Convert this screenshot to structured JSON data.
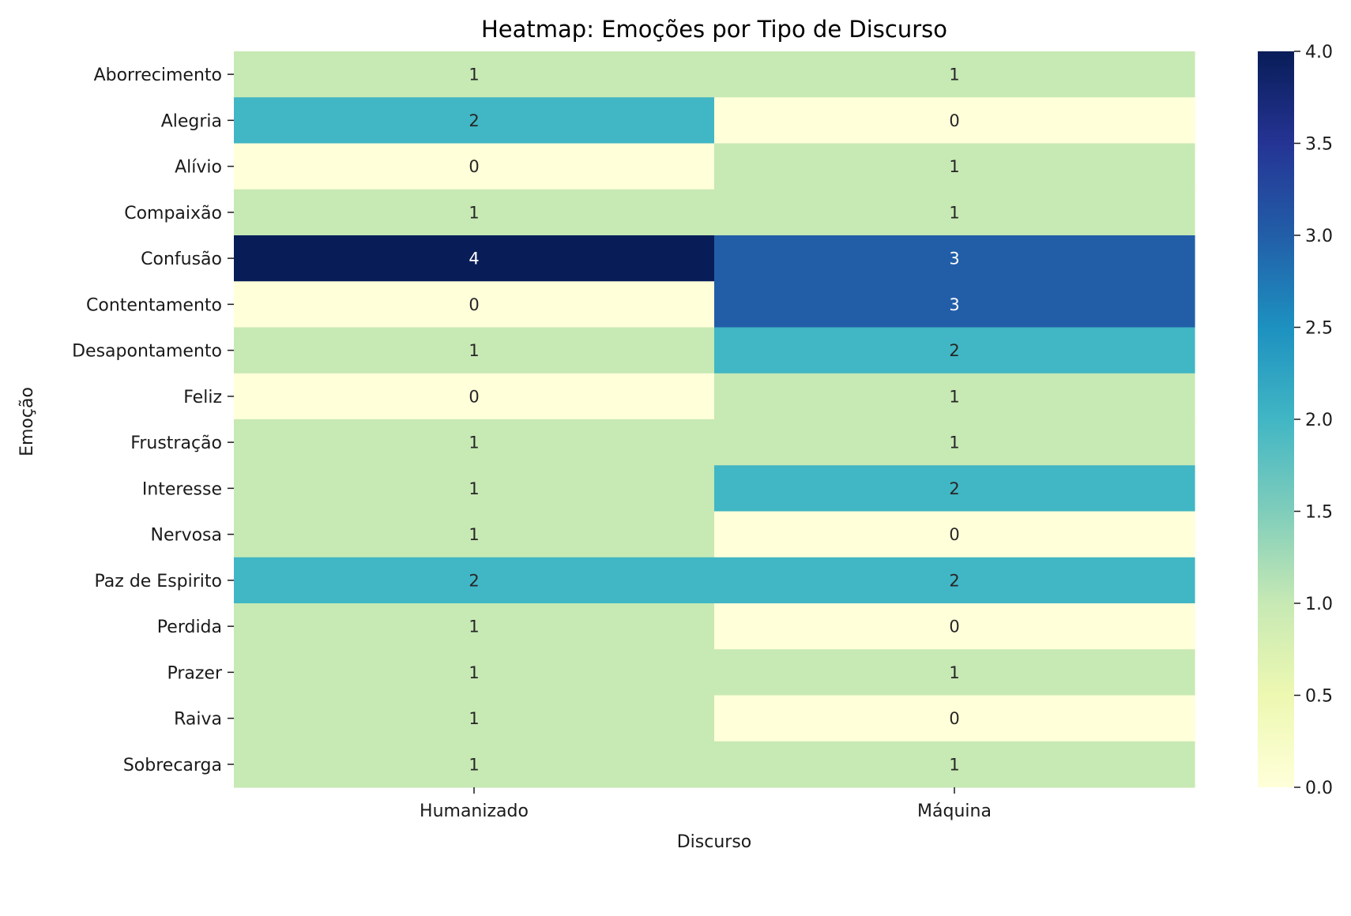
{
  "chart_data": {
    "type": "heatmap",
    "title": "Heatmap: Emoções por Tipo de Discurso",
    "xlabel": "Discurso",
    "ylabel": "Emoção",
    "x_categories": [
      "Humanizado",
      "Máquina"
    ],
    "y_categories": [
      "Aborrecimento",
      "Alegria",
      "Alívio",
      "Compaixão",
      "Confusão",
      "Contentamento",
      "Desapontamento",
      "Feliz",
      "Frustração",
      "Interesse",
      "Nervosa",
      "Paz de Espirito",
      "Perdida",
      "Prazer",
      "Raiva",
      "Sobrecarga"
    ],
    "values": [
      [
        1,
        1
      ],
      [
        2,
        0
      ],
      [
        0,
        1
      ],
      [
        1,
        1
      ],
      [
        4,
        3
      ],
      [
        0,
        3
      ],
      [
        1,
        2
      ],
      [
        0,
        1
      ],
      [
        1,
        1
      ],
      [
        1,
        2
      ],
      [
        1,
        0
      ],
      [
        2,
        2
      ],
      [
        1,
        0
      ],
      [
        1,
        1
      ],
      [
        1,
        0
      ],
      [
        1,
        1
      ]
    ],
    "colormap": "YlGnBu",
    "colorbar": {
      "range": [
        0,
        4
      ],
      "ticks": [
        0.0,
        0.5,
        1.0,
        1.5,
        2.0,
        2.5,
        3.0,
        3.5,
        4.0
      ],
      "tick_labels": [
        "0.0",
        "0.5",
        "1.0",
        "1.5",
        "2.0",
        "2.5",
        "3.0",
        "3.5",
        "4.0"
      ]
    },
    "annotations": true,
    "grid": false
  }
}
